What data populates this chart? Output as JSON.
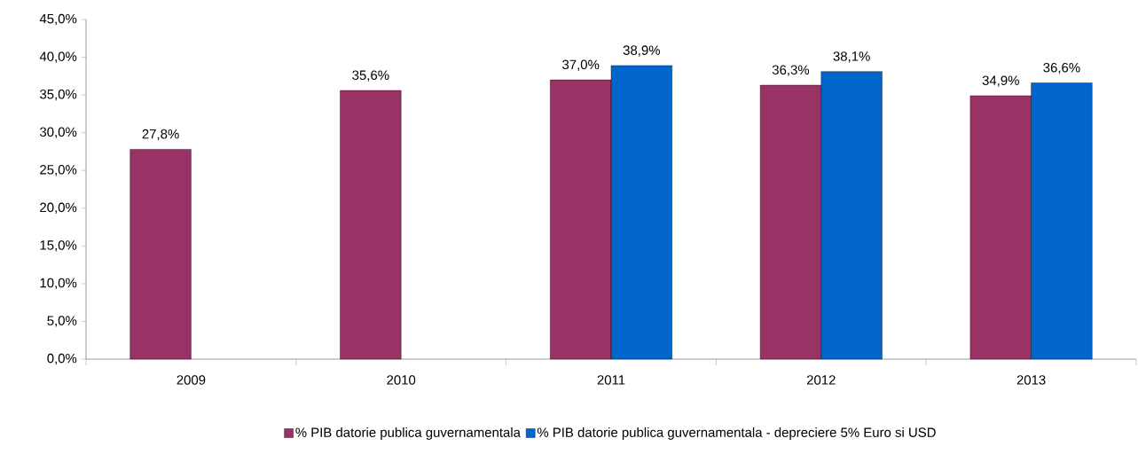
{
  "chart_data": {
    "type": "bar",
    "categories": [
      "2009",
      "2010",
      "2011",
      "2012",
      "2013"
    ],
    "series": [
      {
        "name": "% PIB datorie publica guvernamentala",
        "color": "#993366",
        "values": [
          27.8,
          35.6,
          37.0,
          36.3,
          34.9
        ],
        "value_labels": [
          "27,8%",
          "35,6%",
          "37,0%",
          "36,3%",
          "34,9%"
        ]
      },
      {
        "name": "% PIB datorie publica guvernamentala - depreciere 5% Euro si USD",
        "color": "#0066cc",
        "values": [
          null,
          null,
          38.9,
          38.1,
          36.6
        ],
        "value_labels": [
          null,
          null,
          "38,9%",
          "38,1%",
          "36,6%"
        ]
      }
    ],
    "ylim": [
      0,
      45
    ],
    "yticks": [
      {
        "value": 0,
        "label": "0,0%"
      },
      {
        "value": 5,
        "label": "5,0%"
      },
      {
        "value": 10,
        "label": "10,0%"
      },
      {
        "value": 15,
        "label": "15,0%"
      },
      {
        "value": 20,
        "label": "20,0%"
      },
      {
        "value": 25,
        "label": "25,0%"
      },
      {
        "value": 30,
        "label": "30,0%"
      },
      {
        "value": 35,
        "label": "35,0%"
      },
      {
        "value": 40,
        "label": "40,0%"
      },
      {
        "value": 45,
        "label": "45,0%"
      }
    ],
    "legend": "bottom"
  }
}
